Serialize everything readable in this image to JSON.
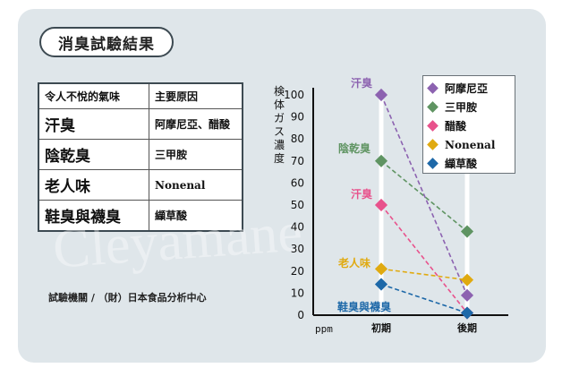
{
  "title": "消臭試驗結果",
  "table": {
    "header": [
      "令人不悅的氣味",
      "主要原因"
    ],
    "rows": [
      [
        "汗臭",
        "阿摩尼亞、醋酸"
      ],
      [
        "陰乾臭",
        "三甲胺"
      ],
      [
        "老人味",
        "Nonenal"
      ],
      [
        "鞋臭與襪臭",
        "纈草酸"
      ]
    ]
  },
  "source": "試驗機關 / （財）日本食品分析中心",
  "watermark": "Cleyamane",
  "chart_data": {
    "type": "line",
    "ylabel": "検体ガス濃度",
    "unit": "ppm",
    "categories": [
      "初期",
      "後期"
    ],
    "ylim": [
      0,
      100
    ],
    "yticks": [
      0,
      10,
      20,
      30,
      40,
      50,
      60,
      70,
      80,
      90,
      100
    ],
    "series": [
      {
        "name": "阿摩尼亞",
        "label": "汗臭",
        "color": "#8c62b0",
        "values": [
          100,
          9
        ]
      },
      {
        "name": "三甲胺",
        "label": "陰乾臭",
        "color": "#5f9462",
        "values": [
          70,
          38
        ]
      },
      {
        "name": "醋酸",
        "label": "汗臭",
        "color": "#e8528c",
        "values": [
          50,
          1
        ]
      },
      {
        "name": "Nonenal",
        "label": "老人味",
        "color": "#e0aa10",
        "values": [
          21,
          16
        ]
      },
      {
        "name": "纈草酸",
        "label": "鞋臭與襪臭",
        "color": "#1d68a8",
        "values": [
          14,
          1
        ]
      }
    ],
    "legend_position": "top-right"
  }
}
